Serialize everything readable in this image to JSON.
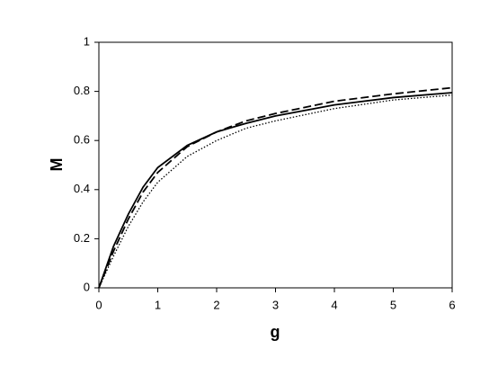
{
  "chart_data": {
    "type": "line",
    "x_label": "g",
    "y_label": "M",
    "x": [
      0,
      0.25,
      0.5,
      0.75,
      1,
      1.5,
      2,
      2.5,
      3,
      4,
      5,
      6
    ],
    "series": [
      {
        "color": "#000000",
        "dash": "solid",
        "values": [
          0,
          0.17,
          0.3,
          0.41,
          0.49,
          0.58,
          0.635,
          0.67,
          0.7,
          0.745,
          0.775,
          0.795
        ]
      },
      {
        "color": "#000000",
        "dash": "dashed",
        "values": [
          0,
          0.15,
          0.28,
          0.39,
          0.47,
          0.575,
          0.635,
          0.68,
          0.71,
          0.76,
          0.79,
          0.815
        ]
      },
      {
        "color": "#000000",
        "dash": "dotted",
        "values": [
          0,
          0.13,
          0.25,
          0.35,
          0.43,
          0.535,
          0.6,
          0.65,
          0.68,
          0.73,
          0.765,
          0.785
        ]
      }
    ],
    "xlim": [
      0,
      6
    ],
    "xticks": [
      0,
      1,
      2,
      3,
      4,
      5,
      6
    ],
    "ylim": [
      0,
      1
    ],
    "yticks": [
      0,
      0.2,
      0.4,
      0.6,
      0.8,
      1
    ],
    "grid": false
  }
}
